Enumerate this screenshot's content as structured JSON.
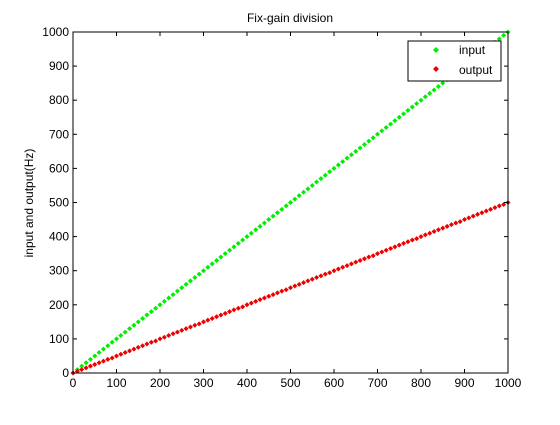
{
  "chart_data": {
    "type": "scatter",
    "title": "Fix-gain division",
    "xlabel": "",
    "ylabel": "input and output(Hz)",
    "xlim": [
      0,
      1000
    ],
    "ylim": [
      0,
      1000
    ],
    "xticks": [
      0,
      100,
      200,
      300,
      400,
      500,
      600,
      700,
      800,
      900,
      1000
    ],
    "yticks": [
      0,
      100,
      200,
      300,
      400,
      500,
      600,
      700,
      800,
      900,
      1000
    ],
    "grid": false,
    "legend_position": "top-right",
    "series": [
      {
        "name": "input",
        "color": "#00ee00",
        "marker": "diamond",
        "x": [
          0,
          10,
          20,
          30,
          40,
          50,
          60,
          70,
          80,
          90,
          100,
          110,
          120,
          130,
          140,
          150,
          160,
          170,
          180,
          190,
          200,
          210,
          220,
          230,
          240,
          250,
          260,
          270,
          280,
          290,
          300,
          310,
          320,
          330,
          340,
          350,
          360,
          370,
          380,
          390,
          400,
          410,
          420,
          430,
          440,
          450,
          460,
          470,
          480,
          490,
          500,
          510,
          520,
          530,
          540,
          550,
          560,
          570,
          580,
          590,
          600,
          610,
          620,
          630,
          640,
          650,
          660,
          670,
          680,
          690,
          700,
          710,
          720,
          730,
          740,
          750,
          760,
          770,
          780,
          790,
          800,
          810,
          820,
          830,
          840,
          850,
          860,
          870,
          880,
          890,
          900,
          910,
          920,
          930,
          940,
          950,
          960,
          970,
          980,
          990,
          1000
        ],
        "y": [
          0,
          10,
          20,
          30,
          40,
          50,
          60,
          70,
          80,
          90,
          100,
          110,
          120,
          130,
          140,
          150,
          160,
          170,
          180,
          190,
          200,
          210,
          220,
          230,
          240,
          250,
          260,
          270,
          280,
          290,
          300,
          310,
          320,
          330,
          340,
          350,
          360,
          370,
          380,
          390,
          400,
          410,
          420,
          430,
          440,
          450,
          460,
          470,
          480,
          490,
          500,
          510,
          520,
          530,
          540,
          550,
          560,
          570,
          580,
          590,
          600,
          610,
          620,
          630,
          640,
          650,
          660,
          670,
          680,
          690,
          700,
          710,
          720,
          730,
          740,
          750,
          760,
          770,
          780,
          790,
          800,
          810,
          820,
          830,
          840,
          850,
          860,
          870,
          880,
          890,
          900,
          910,
          920,
          930,
          940,
          950,
          960,
          970,
          980,
          990,
          1000
        ]
      },
      {
        "name": "output",
        "color": "#ee0000",
        "marker": "diamond",
        "x": [
          0,
          10,
          20,
          30,
          40,
          50,
          60,
          70,
          80,
          90,
          100,
          110,
          120,
          130,
          140,
          150,
          160,
          170,
          180,
          190,
          200,
          210,
          220,
          230,
          240,
          250,
          260,
          270,
          280,
          290,
          300,
          310,
          320,
          330,
          340,
          350,
          360,
          370,
          380,
          390,
          400,
          410,
          420,
          430,
          440,
          450,
          460,
          470,
          480,
          490,
          500,
          510,
          520,
          530,
          540,
          550,
          560,
          570,
          580,
          590,
          600,
          610,
          620,
          630,
          640,
          650,
          660,
          670,
          680,
          690,
          700,
          710,
          720,
          730,
          740,
          750,
          760,
          770,
          780,
          790,
          800,
          810,
          820,
          830,
          840,
          850,
          860,
          870,
          880,
          890,
          900,
          910,
          920,
          930,
          940,
          950,
          960,
          970,
          980,
          990,
          1000
        ],
        "y": [
          0,
          5,
          10,
          15,
          20,
          25,
          30,
          35,
          40,
          44,
          50,
          55,
          60,
          65,
          70,
          75,
          80,
          85,
          90,
          94,
          100,
          105,
          110,
          115,
          120,
          125,
          130,
          135,
          140,
          144,
          150,
          155,
          160,
          165,
          170,
          175,
          180,
          185,
          190,
          194,
          200,
          205,
          210,
          215,
          220,
          225,
          230,
          235,
          240,
          244,
          250,
          255,
          260,
          265,
          270,
          275,
          280,
          285,
          290,
          294,
          300,
          305,
          310,
          315,
          320,
          325,
          330,
          335,
          340,
          344,
          350,
          355,
          360,
          365,
          370,
          375,
          380,
          385,
          390,
          394,
          400,
          405,
          410,
          415,
          420,
          425,
          430,
          435,
          440,
          444,
          450,
          455,
          460,
          465,
          470,
          475,
          480,
          485,
          490,
          494,
          500
        ]
      }
    ]
  }
}
